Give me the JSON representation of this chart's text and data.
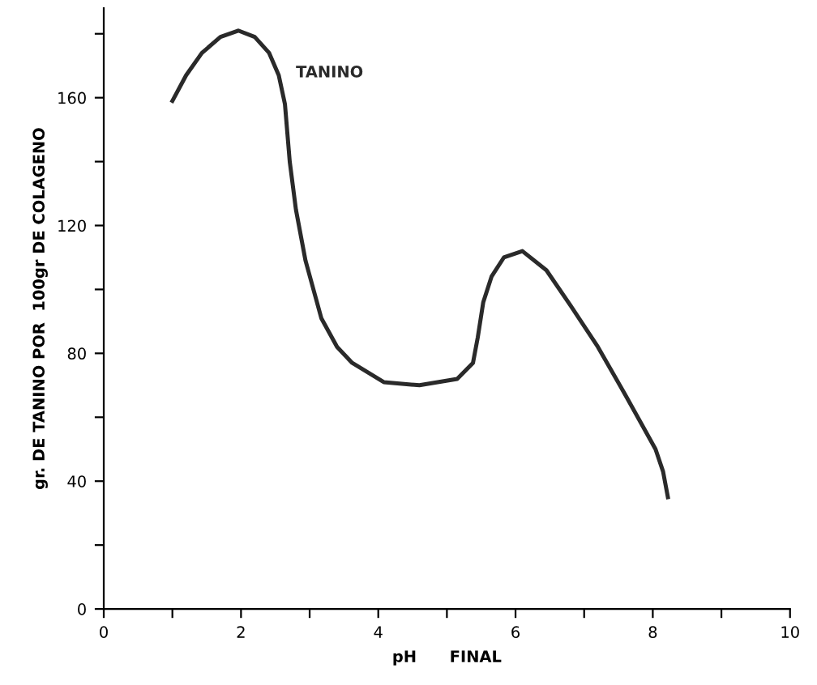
{
  "chart_data": {
    "type": "line",
    "xlabel": "pH      FINAL",
    "ylabel": "gr. DE TANINO POR  100gr DE COLAGENO",
    "x": [
      1.0,
      1.2,
      1.43,
      1.7,
      1.96,
      2.2,
      2.41,
      2.55,
      2.64,
      2.71,
      2.8,
      2.94,
      3.17,
      3.4,
      3.62,
      4.08,
      4.6,
      5.15,
      5.38,
      5.45,
      5.53,
      5.65,
      5.83,
      6.1,
      6.45,
      6.8,
      7.2,
      7.6,
      8.04,
      8.15,
      8.22
    ],
    "series": [
      {
        "name": "TANINO",
        "color": "#2a2a2a",
        "values": [
          159,
          167,
          174,
          179,
          181,
          179,
          174,
          167,
          158,
          140,
          125,
          109,
          91,
          82,
          77,
          71,
          70,
          72,
          77,
          85,
          96,
          104,
          110,
          112,
          106,
          95,
          82,
          67,
          50,
          43,
          35
        ]
      }
    ],
    "xlim": [
      0,
      10
    ],
    "ylim": [
      0,
      188
    ],
    "xticks": [
      0,
      {
        "value": 1,
        "label": null
      },
      2,
      {
        "value": 3,
        "label": null
      },
      4,
      {
        "value": 5,
        "label": null
      },
      6,
      {
        "value": 7,
        "label": null
      },
      8,
      {
        "value": 9,
        "label": null
      },
      10
    ],
    "yticks": [
      0,
      {
        "value": 20,
        "label": null
      },
      40,
      {
        "value": 60,
        "label": null
      },
      80,
      {
        "value": 100,
        "label": null
      },
      120,
      {
        "value": 140,
        "label": null
      },
      160,
      {
        "value": 180,
        "label": null
      }
    ],
    "grid": false,
    "legend": false,
    "marker": "none",
    "line_style": "solid"
  }
}
